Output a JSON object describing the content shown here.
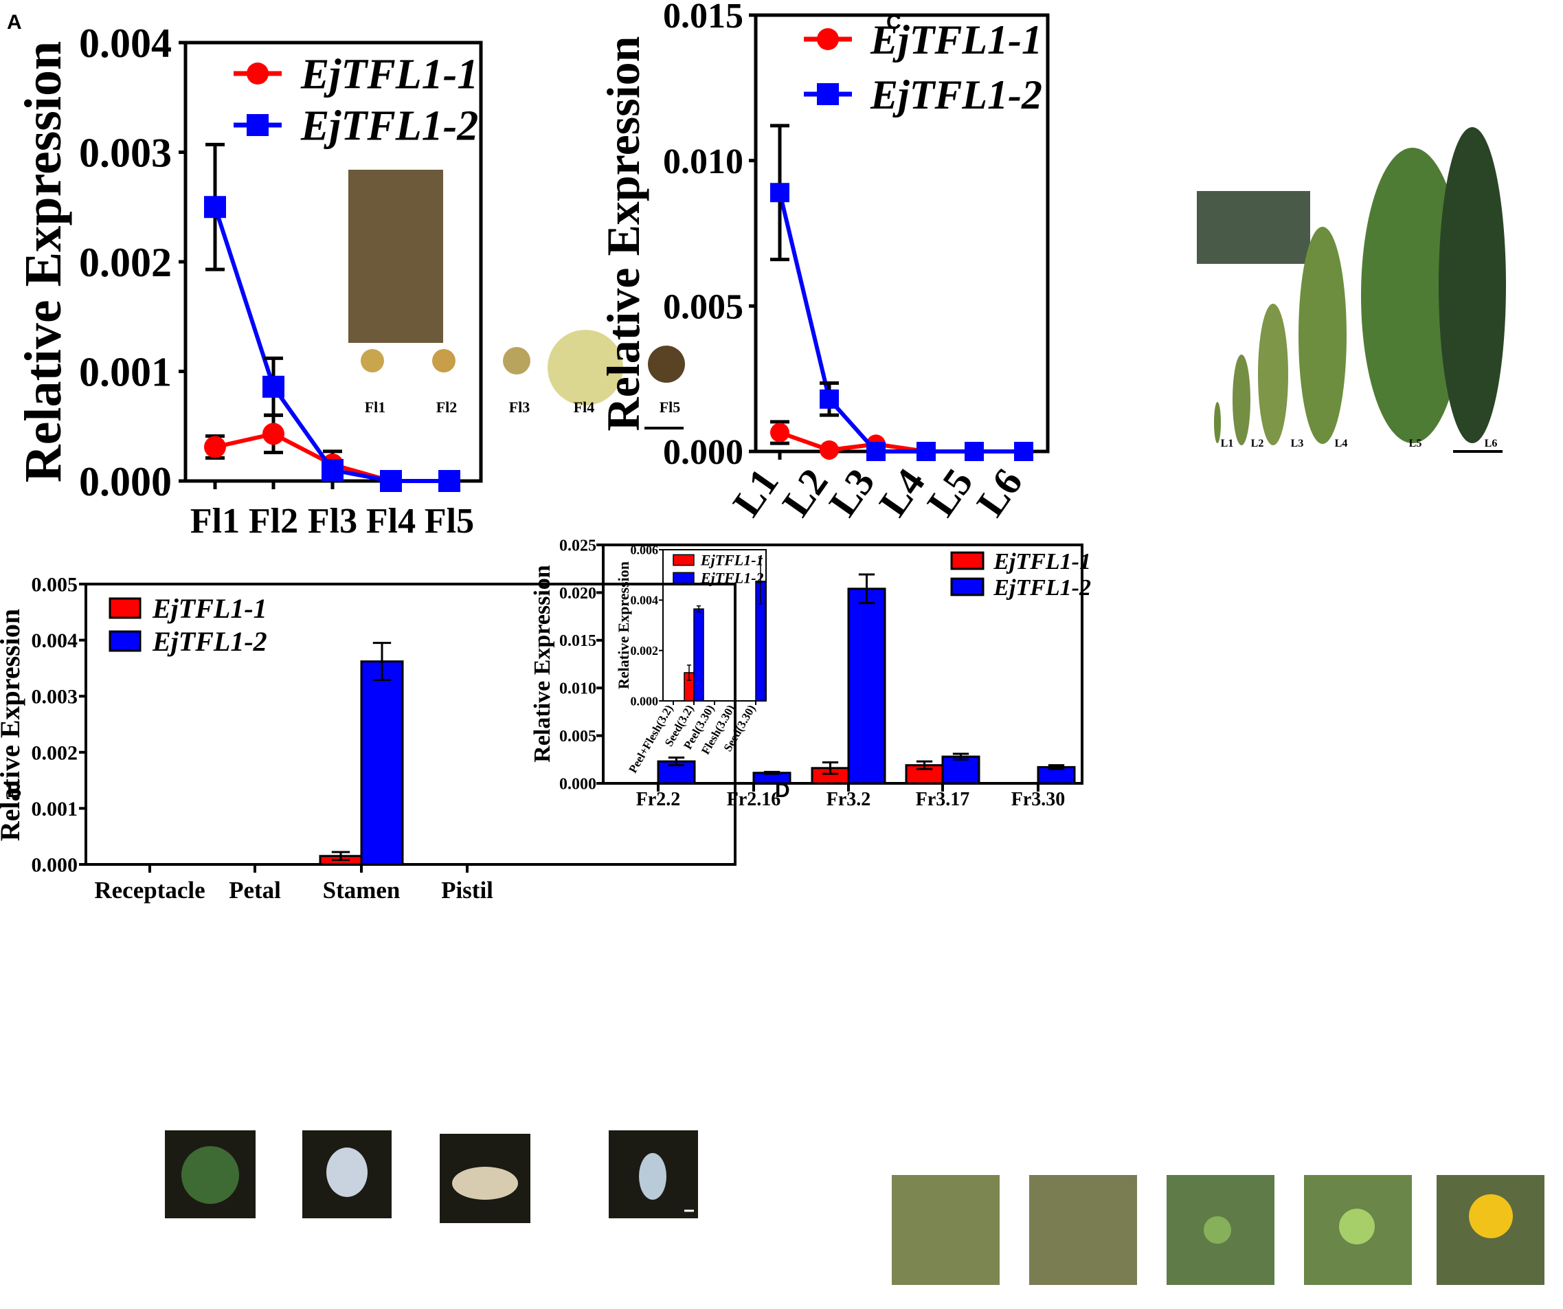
{
  "colors": {
    "gene1": "#ff0000",
    "gene2": "#0000ff",
    "axis": "#000000",
    "photo_dark": "#1b1b14",
    "photo_leaf": "#5e7d3a",
    "photo_fruit": "#7c8650"
  },
  "chart_data": [
    {
      "panel": "A",
      "type": "line",
      "ylabel": "Relative Expression",
      "categories": [
        "Fl1",
        "Fl2",
        "Fl3",
        "Fl4",
        "Fl5"
      ],
      "ylim": [
        0,
        0.004
      ],
      "yticks": [
        "0.000",
        "0.001",
        "0.002",
        "0.003",
        "0.004"
      ],
      "series": [
        {
          "name": "EjTFL1-1",
          "values": [
            0.00031,
            0.00043,
            0.00015,
            0.0,
            0.0
          ],
          "errors": [
            0.0001,
            0.00017,
            0.00012,
            0.0,
            0.0
          ]
        },
        {
          "name": "EjTFL1-2",
          "values": [
            0.0025,
            0.00086,
            0.0001,
            0.0,
            0.0
          ],
          "errors": [
            0.00057,
            0.00026,
            4e-05,
            0.0,
            0.0
          ]
        }
      ],
      "photo_labels": [
        "Fl1",
        "Fl2",
        "Fl3",
        "Fl4",
        "Fl5"
      ]
    },
    {
      "panel": "B",
      "type": "bar",
      "ylabel": "Relative Expression",
      "categories": [
        "Receptacle",
        "Petal",
        "Stamen",
        "Pistil"
      ],
      "ylim": [
        0,
        0.005
      ],
      "yticks": [
        "0.000",
        "0.001",
        "0.002",
        "0.003",
        "0.004",
        "0.005"
      ],
      "series": [
        {
          "name": "EjTFL1-1",
          "values": [
            0.0,
            0.0,
            0.00015,
            0.0
          ],
          "errors": [
            0.0,
            0.0,
            7e-05,
            0.0
          ]
        },
        {
          "name": "EjTFL1-2",
          "values": [
            0.0,
            0.0,
            0.00362,
            0.0
          ],
          "errors": [
            0.0,
            0.0,
            0.00033,
            0.0
          ]
        }
      ]
    },
    {
      "panel": "C",
      "type": "line",
      "ylabel": "Relative Expression",
      "categories": [
        "L1",
        "L2",
        "L3",
        "L4",
        "L5",
        "L6"
      ],
      "ylim": [
        0,
        0.015
      ],
      "yticks": [
        "0.000",
        "0.005",
        "0.010",
        "0.015"
      ],
      "series": [
        {
          "name": "EjTFL1-1",
          "values": [
            0.00065,
            5e-05,
            0.00025,
            0.0,
            0.0,
            0.0
          ],
          "errors": [
            0.00037,
            0.0,
            0.0,
            0.0,
            0.0,
            0.0
          ]
        },
        {
          "name": "EjTFL1-2",
          "values": [
            0.0089,
            0.0018,
            0.0,
            0.0,
            0.0,
            0.0
          ],
          "errors": [
            0.0023,
            0.00055,
            0.0,
            0.0,
            0.0,
            0.0
          ]
        }
      ],
      "photo_labels": [
        "L1",
        "L2",
        "L3",
        "L4",
        "L5",
        "L6"
      ]
    },
    {
      "panel": "D",
      "type": "bar",
      "ylabel": "Relative Expression",
      "categories": [
        "Fr2.2",
        "Fr2.16",
        "Fr3.2",
        "Fr3.17",
        "Fr3.30"
      ],
      "ylim": [
        0,
        0.025
      ],
      "yticks": [
        "0.000",
        "0.005",
        "0.010",
        "0.015",
        "0.020",
        "0.025"
      ],
      "series": [
        {
          "name": "EjTFL1-1",
          "values": [
            0.0,
            0.0,
            0.0016,
            0.0019,
            0.0
          ],
          "errors": [
            0.0,
            0.0,
            0.0006,
            0.0004,
            0.0
          ]
        },
        {
          "name": "EjTFL1-2",
          "values": [
            0.0023,
            0.0011,
            0.0204,
            0.0028,
            0.0017
          ],
          "errors": [
            0.0004,
            0.0001,
            0.0015,
            0.0003,
            0.0002
          ]
        }
      ]
    },
    {
      "panel": "D-inset",
      "type": "bar",
      "ylabel": "Relative Expression",
      "categories": [
        "Peel+Flesh(3.2)",
        "Seed(3.2)",
        "Peel(3.30)",
        "Flesh(3.30)",
        "Seed(3.30)"
      ],
      "ylim": [
        0,
        0.006
      ],
      "yticks": [
        "0.000",
        "0.002",
        "0.004",
        "0.006"
      ],
      "series": [
        {
          "name": "EjTFL1-1",
          "values": [
            0.0,
            0.00112,
            0.0,
            0.0,
            0.0
          ],
          "errors": [
            0.0,
            0.0003,
            0.0,
            0.0,
            0.0
          ]
        },
        {
          "name": "EjTFL1-2",
          "values": [
            0.0,
            0.00365,
            0.0,
            0.0,
            0.00475
          ],
          "errors": [
            0.0,
            0.00012,
            0.0,
            0.0,
            0.0009
          ]
        }
      ]
    }
  ],
  "panel_letters": [
    "A",
    "B",
    "C",
    "D"
  ]
}
